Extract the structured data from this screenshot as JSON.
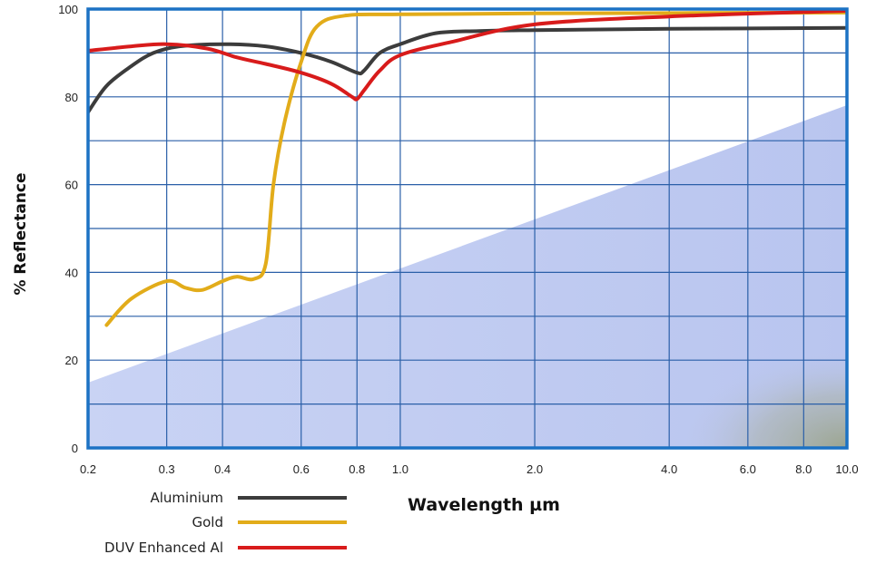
{
  "chart_data": {
    "type": "line",
    "xlabel": "Wavelength µm",
    "ylabel": "% Reflectance",
    "x_scale": "log",
    "xlim": [
      0.2,
      10.0
    ],
    "ylim": [
      0,
      100
    ],
    "x_ticks": [
      {
        "value": 0.2,
        "label": "0.2"
      },
      {
        "value": 0.3,
        "label": "0.3"
      },
      {
        "value": 0.4,
        "label": "0.4"
      },
      {
        "value": 0.6,
        "label": "0.6"
      },
      {
        "value": 0.8,
        "label": "0.8"
      },
      {
        "value": 1.0,
        "label": "1.0"
      },
      {
        "value": 2.0,
        "label": "2.0"
      },
      {
        "value": 4.0,
        "label": "4.0"
      },
      {
        "value": 6.0,
        "label": "6.0"
      },
      {
        "value": 8.0,
        "label": "8.0"
      },
      {
        "value": 10.0,
        "label": "10.0"
      }
    ],
    "y_ticks": [
      {
        "value": 0,
        "label": "0"
      },
      {
        "value": 20,
        "label": "20"
      },
      {
        "value": 40,
        "label": "40"
      },
      {
        "value": 60,
        "label": "60"
      },
      {
        "value": 80,
        "label": "80"
      },
      {
        "value": 100,
        "label": "100"
      }
    ],
    "x_grid": [
      0.2,
      0.3,
      0.4,
      0.6,
      0.8,
      1.0,
      2.0,
      4.0,
      6.0,
      8.0,
      10.0
    ],
    "y_grid": [
      10,
      20,
      30,
      40,
      50,
      60,
      70,
      80,
      90
    ],
    "grid": true,
    "legend_position": "bottom-left",
    "series": [
      {
        "name": "Aluminium",
        "color": "#3c3c3c",
        "points": [
          [
            0.2,
            76.5
          ],
          [
            0.22,
            82.5
          ],
          [
            0.25,
            87
          ],
          [
            0.28,
            90
          ],
          [
            0.32,
            91.5
          ],
          [
            0.4,
            92
          ],
          [
            0.5,
            91.5
          ],
          [
            0.6,
            90
          ],
          [
            0.7,
            88
          ],
          [
            0.8,
            85.5
          ],
          [
            0.83,
            86
          ],
          [
            0.9,
            90
          ],
          [
            1.0,
            92
          ],
          [
            1.2,
            94.5
          ],
          [
            1.5,
            95
          ],
          [
            2.0,
            95.2
          ],
          [
            4.0,
            95.5
          ],
          [
            10.0,
            95.7
          ]
        ]
      },
      {
        "name": "Gold",
        "color": "#e2ac1a",
        "points": [
          [
            0.22,
            28
          ],
          [
            0.25,
            34
          ],
          [
            0.3,
            38
          ],
          [
            0.33,
            36.5
          ],
          [
            0.36,
            36
          ],
          [
            0.4,
            38
          ],
          [
            0.43,
            39
          ],
          [
            0.47,
            38.5
          ],
          [
            0.5,
            42
          ],
          [
            0.52,
            60
          ],
          [
            0.55,
            74
          ],
          [
            0.6,
            88
          ],
          [
            0.65,
            96
          ],
          [
            0.75,
            98.5
          ],
          [
            1.0,
            98.8
          ],
          [
            2.0,
            99
          ],
          [
            10.0,
            99.2
          ]
        ]
      },
      {
        "name": "DUV Enhanced Al",
        "color": "#d81b1b",
        "points": [
          [
            0.2,
            90.5
          ],
          [
            0.25,
            91.5
          ],
          [
            0.3,
            92
          ],
          [
            0.37,
            91
          ],
          [
            0.43,
            89
          ],
          [
            0.5,
            87.5
          ],
          [
            0.6,
            85.5
          ],
          [
            0.7,
            83
          ],
          [
            0.78,
            80
          ],
          [
            0.8,
            79.5
          ],
          [
            0.83,
            81.5
          ],
          [
            0.9,
            86
          ],
          [
            1.0,
            89.5
          ],
          [
            1.3,
            92.5
          ],
          [
            2.0,
            96.5
          ],
          [
            4.0,
            98.3
          ],
          [
            10.0,
            99.6
          ]
        ]
      }
    ]
  }
}
